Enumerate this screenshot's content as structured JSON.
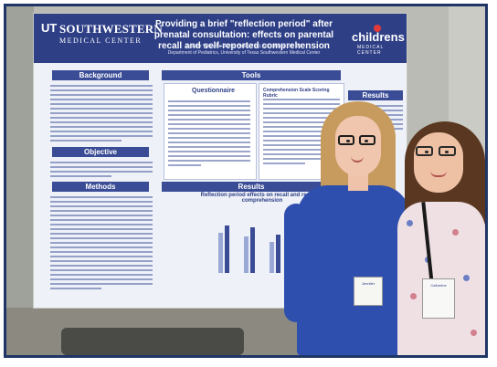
{
  "poster": {
    "logo_prefix": "UT",
    "logo_name": "SOUTHWESTERN",
    "logo_sub": "MEDICAL CENTER",
    "title": "Providing a brief \"reflection period\" after prenatal consultation: effects on parental recall and self-reported comprehension",
    "authors": "Jennifer Williams, MS III; Holley Ford, MS; Maisie Ott, MD",
    "affiliation": "Department of Pediatrics, University of Texas Southwestern Medical Center",
    "partner_logo": "childrens",
    "partner_sub": "MEDICAL CENTER",
    "sections": {
      "background": "Background",
      "objective": "Objective",
      "methods": "Methods",
      "tools": "Tools",
      "questionnaire": "Questionnaire",
      "comprehension": "Comprehension Scale Scoring Rubric",
      "results": "Results",
      "results_right": "Results",
      "chart_title": "Reflection period effects on recall and reported comprehension"
    }
  },
  "badges": {
    "left": "Jennifer",
    "right": "Catherine"
  },
  "colors": {
    "frame": "#1f3566",
    "poster_header": "#2e3f86",
    "section_bar": "#3a4c96",
    "dress": "#2f4faf",
    "bar_dark": "#3a4c96",
    "bar_light": "#9aa8d6"
  }
}
